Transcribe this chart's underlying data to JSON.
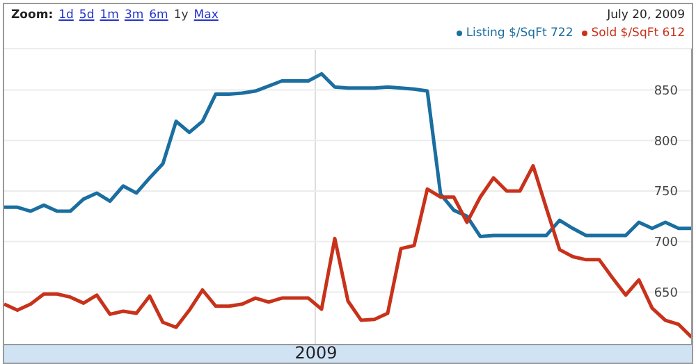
{
  "chart_data": {
    "type": "line",
    "categories": [
      null,
      null,
      null,
      null,
      null,
      null,
      null,
      null,
      null,
      null,
      null,
      null,
      null,
      null,
      null,
      null,
      null,
      null,
      null,
      null,
      null,
      null,
      null,
      null,
      null,
      null,
      null,
      null,
      null,
      null,
      null,
      null,
      null,
      null,
      null,
      null,
      null,
      null,
      null,
      null,
      null,
      null,
      null,
      null,
      null,
      null,
      null,
      null,
      null,
      null,
      null,
      null,
      null
    ],
    "series": [
      {
        "name": "Listing $/SqFt 722",
        "color": "#1a6ea0",
        "values": [
          734,
          734,
          730,
          736,
          730,
          730,
          742,
          748,
          740,
          755,
          748,
          763,
          777,
          819,
          808,
          819,
          846,
          846,
          847,
          849,
          854,
          859,
          859,
          859,
          866,
          853,
          852,
          852,
          852,
          853,
          852,
          851,
          849,
          747,
          731,
          725,
          705,
          706,
          706,
          706,
          706,
          706,
          721,
          713,
          706,
          706,
          706,
          706,
          719,
          713,
          719,
          713,
          713
        ]
      },
      {
        "name": "Sold $/SqFt 612",
        "color": "#c8321a",
        "values": [
          638,
          632,
          638,
          648,
          648,
          645,
          639,
          647,
          628,
          631,
          629,
          646,
          620,
          615,
          632,
          652,
          636,
          636,
          638,
          644,
          640,
          644,
          644,
          644,
          633,
          703,
          641,
          622,
          623,
          629,
          693,
          696,
          752,
          744,
          744,
          719,
          744,
          763,
          750,
          750,
          775,
          733,
          692,
          685,
          682,
          682,
          664,
          647,
          662,
          634,
          622,
          618,
          605
        ]
      }
    ],
    "ylim": [
      598,
      891
    ],
    "yticks": [
      650,
      700,
      750,
      800,
      850
    ],
    "grid": "y",
    "legend": "top right",
    "marker": "none",
    "line_style": "solid",
    "annotations": [
      "Zoom:",
      "1d",
      "5d",
      "1m",
      "3m",
      "6m",
      "1y",
      "Max",
      "July 20, 2009",
      "2009"
    ]
  }
}
